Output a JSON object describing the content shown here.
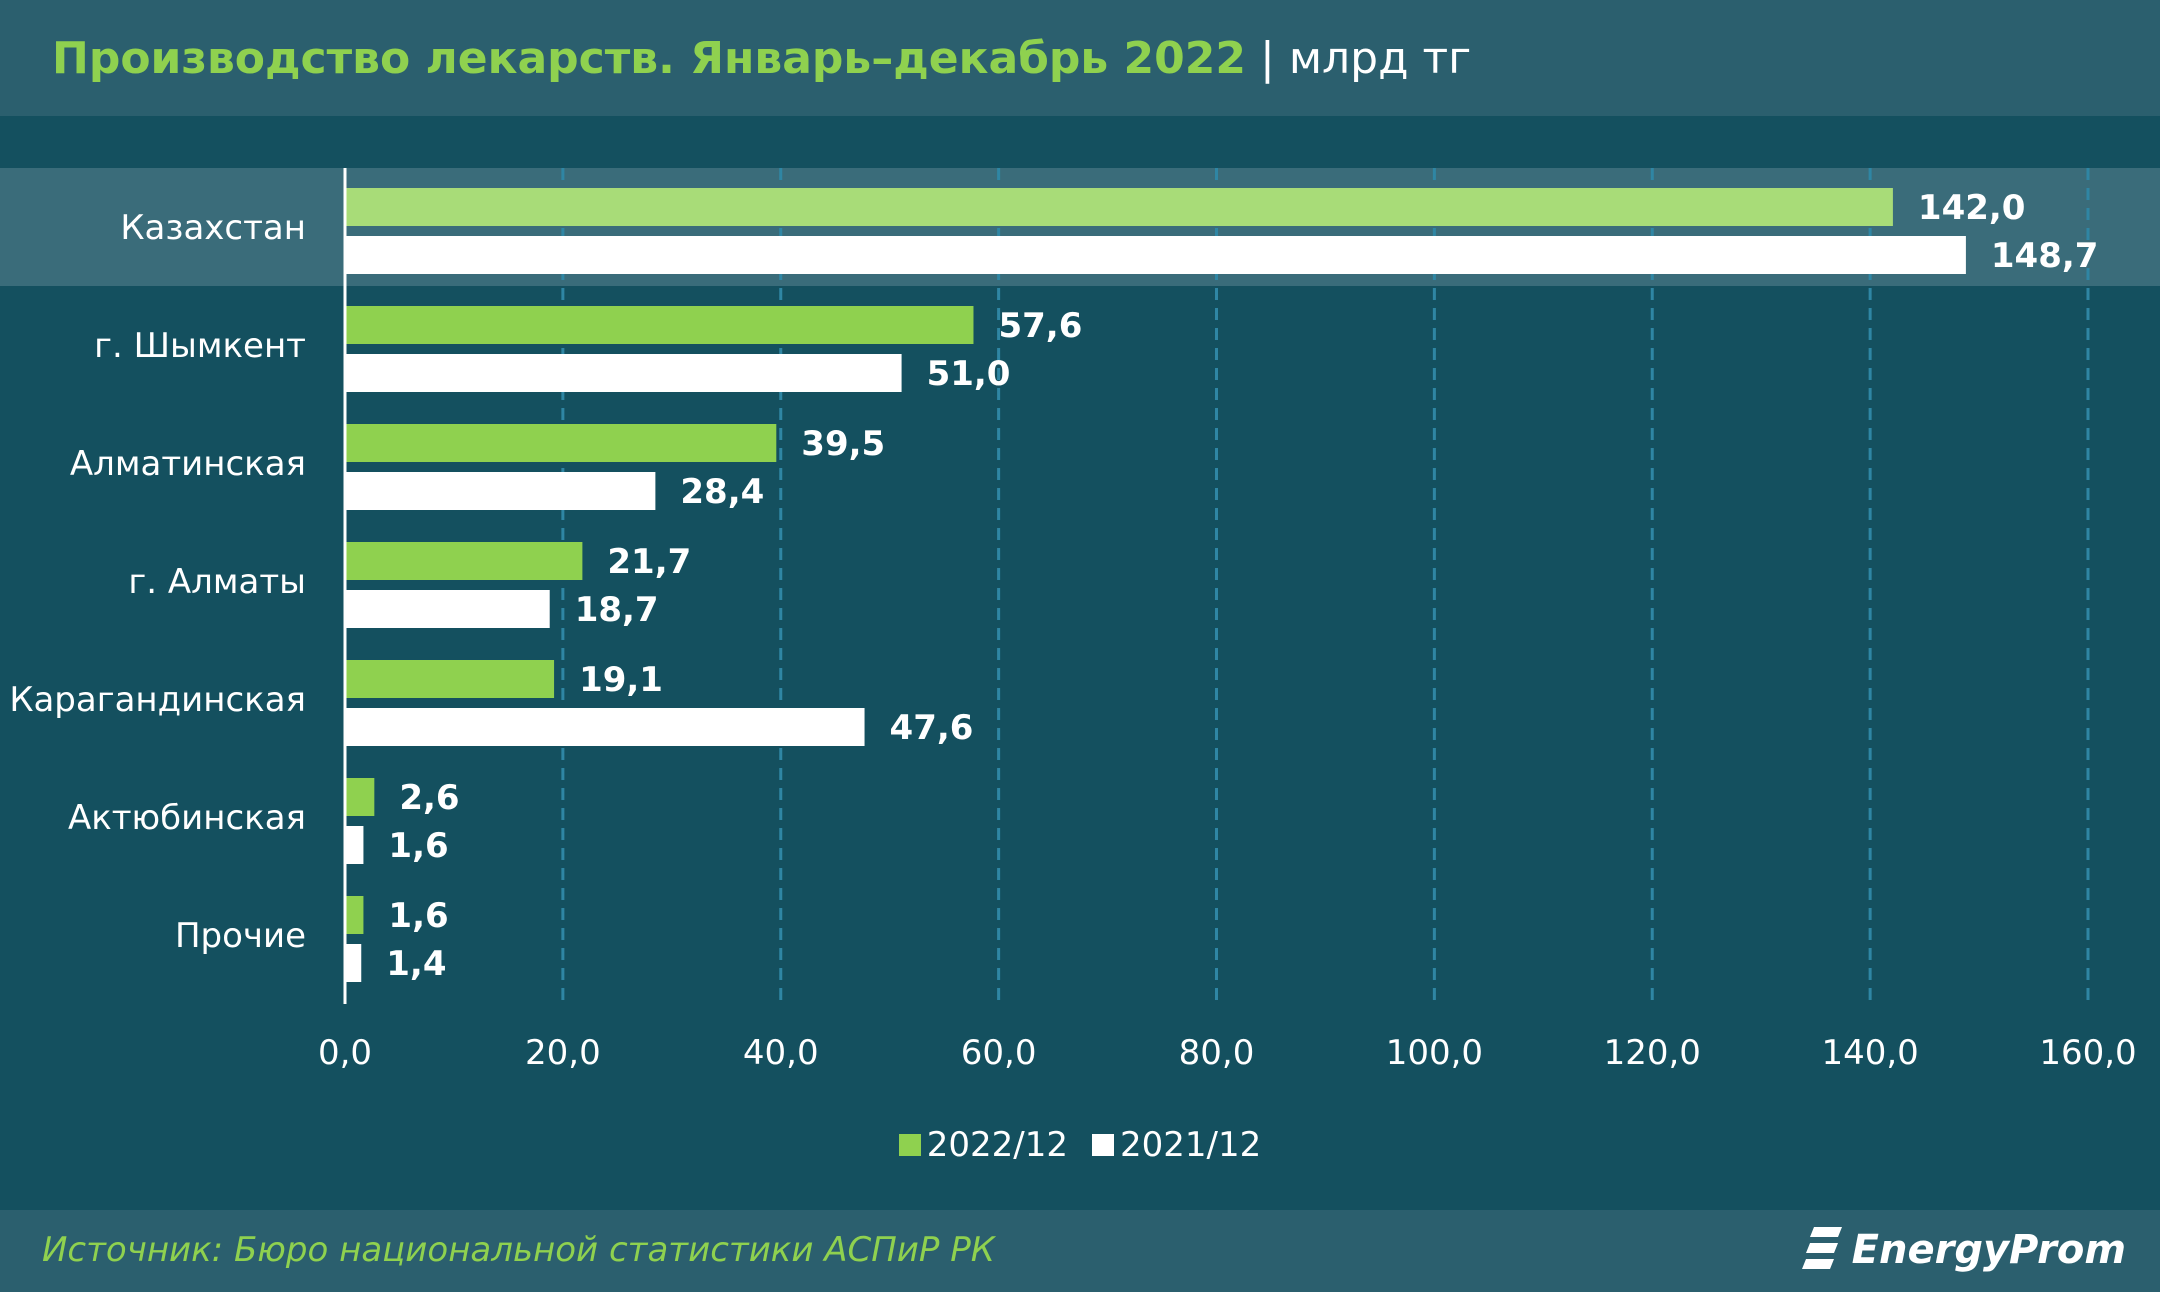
{
  "title": {
    "main": "Производство лекарств. Январь–декабрь 2022",
    "separator": "|",
    "unit": "млрд тг"
  },
  "colors": {
    "series_2022": "#8fd14f",
    "series_2022_highlight": "#a8dc78",
    "series_2021": "#ffffff",
    "background": "#14505f",
    "panel": "#2b5f6e",
    "highlight_band": "#3a6c7a",
    "grid": "#2f86a4",
    "label": "#ffffff"
  },
  "chart_data": {
    "type": "bar",
    "orientation": "horizontal",
    "categories": [
      "Казахстан",
      "г. Шымкент",
      "Алматинская",
      "г. Алматы",
      "Карагандинская",
      "Актюбинская",
      "Прочие"
    ],
    "series": [
      {
        "name": "2022/12",
        "values": [
          142.0,
          57.6,
          39.5,
          21.7,
          19.1,
          2.6,
          1.6
        ],
        "labels": [
          "142,0",
          "57,6",
          "39,5",
          "21,7",
          "19,1",
          "2,6",
          "1,6"
        ]
      },
      {
        "name": "2021/12",
        "values": [
          148.7,
          51.0,
          28.4,
          18.7,
          47.6,
          1.6,
          1.4
        ],
        "labels": [
          "148,7",
          "51,0",
          "28,4",
          "18,7",
          "47,6",
          "1,6",
          "1,4"
        ]
      }
    ],
    "xlim": [
      0,
      160
    ],
    "xticks": [
      0,
      20,
      40,
      60,
      80,
      100,
      120,
      140,
      160
    ],
    "xtick_labels": [
      "0,0",
      "20,0",
      "40,0",
      "60,0",
      "80,0",
      "100,0",
      "120,0",
      "140,0",
      "160,0"
    ],
    "grid": true,
    "legend_position": "bottom-center",
    "highlighted_category": "Казахстан"
  },
  "source": "Источник: Бюро национальной статистики АСПиР РК",
  "logo": "EnergyProm"
}
